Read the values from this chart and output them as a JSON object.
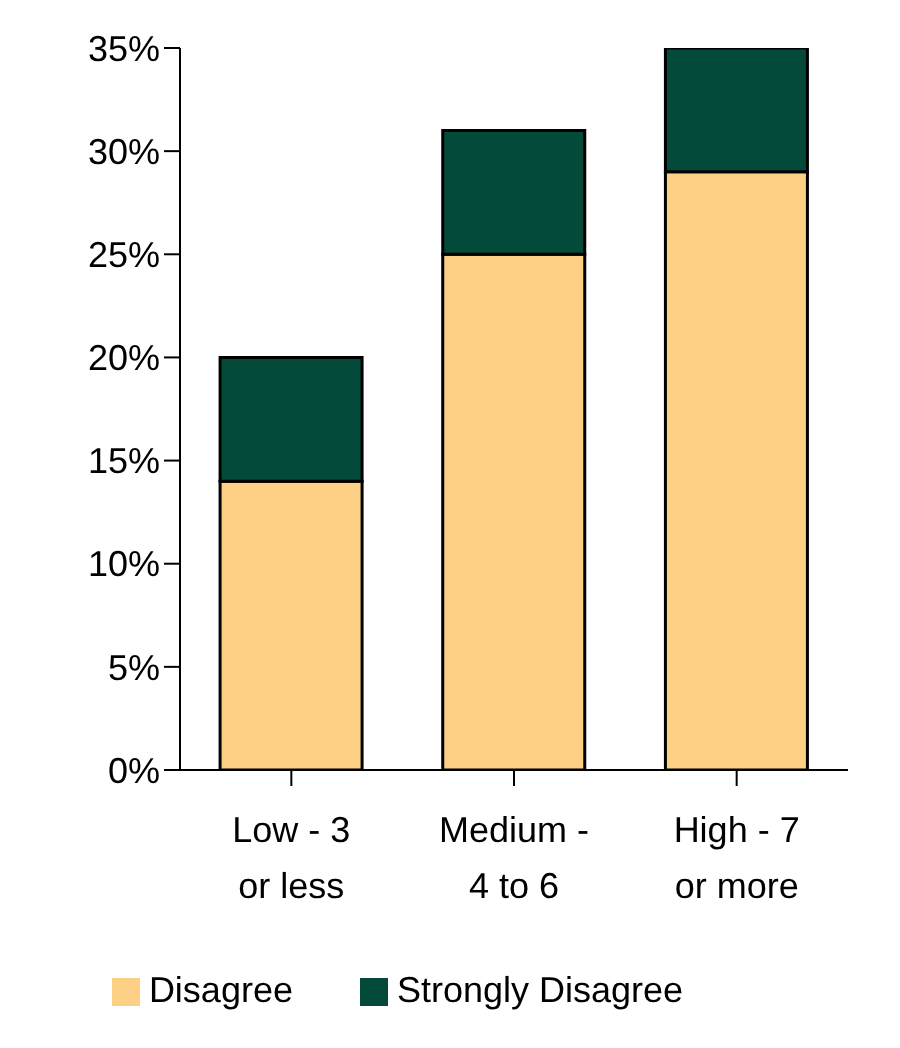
{
  "chart_data": {
    "type": "bar",
    "stacked": true,
    "categories": [
      "Low - 3 or less",
      "Medium - 4 to 6",
      "High - 7 or more"
    ],
    "series": [
      {
        "name": "Disagree",
        "color": "#fdd086",
        "values": [
          14,
          25,
          29
        ]
      },
      {
        "name": "Strongly Disagree",
        "color": "#044a3a",
        "values": [
          6,
          6,
          6
        ]
      }
    ],
    "ylim": [
      0,
      35
    ],
    "yticks": [
      {
        "value": 0,
        "label": "0%"
      },
      {
        "value": 5,
        "label": "5%"
      },
      {
        "value": 10,
        "label": "10%"
      },
      {
        "value": 15,
        "label": "15%"
      },
      {
        "value": 20,
        "label": "20%"
      },
      {
        "value": 25,
        "label": "25%"
      },
      {
        "value": 30,
        "label": "30%"
      },
      {
        "value": 35,
        "label": "35%"
      }
    ],
    "grid": false,
    "legend": "bottom"
  }
}
